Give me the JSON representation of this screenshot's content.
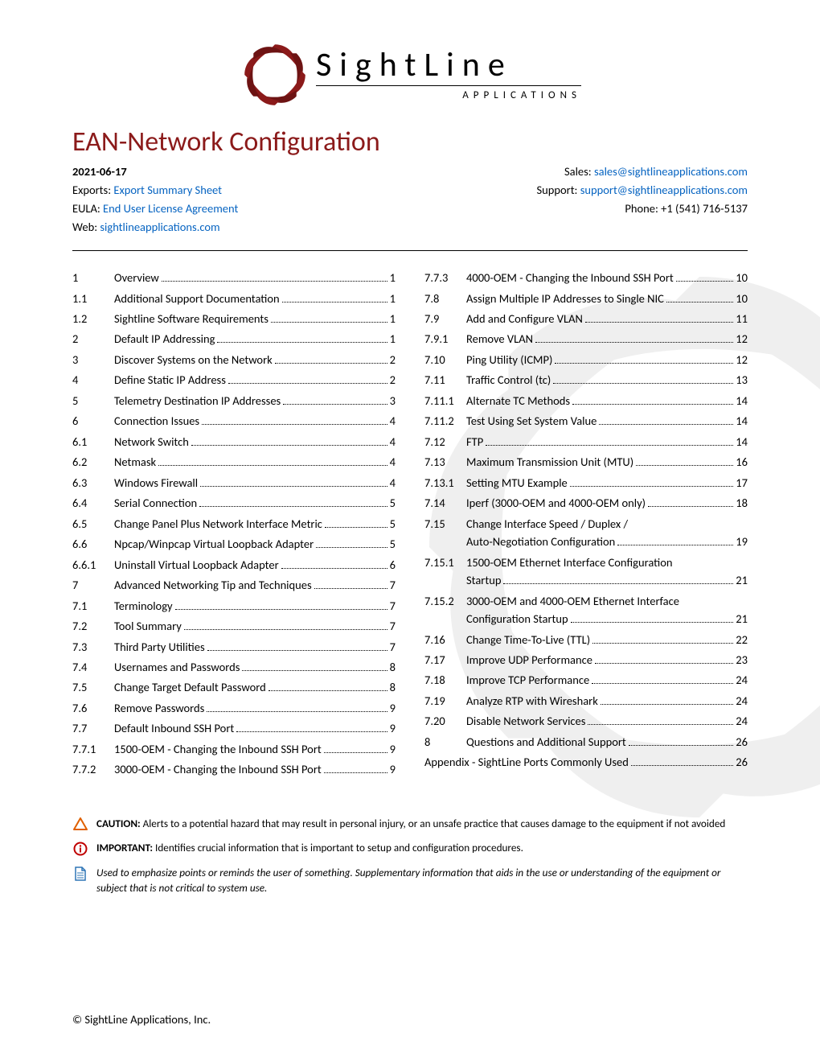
{
  "logo": {
    "main": "SightLine",
    "sub": "APPLICATIONS"
  },
  "title": "EAN-Network Configuration",
  "title_color": "#8b1a1a",
  "link_color": "#0563c1",
  "date": "2021-06-17",
  "header_left": [
    {
      "label": "Exports: ",
      "link": "Export Summary Sheet"
    },
    {
      "label": "EULA: ",
      "link": "End User License Agreement"
    },
    {
      "label": "Web: ",
      "link": "sightlineapplications.com"
    }
  ],
  "header_right": [
    {
      "label": "Sales:  ",
      "link": "sales@sightlineapplications.com"
    },
    {
      "label": "Support: ",
      "link": "support@sightlineapplications.com"
    },
    {
      "label": "Phone: +1 (541) 716-5137",
      "link": null
    }
  ],
  "toc_left": [
    {
      "n": "1",
      "t": "Overview",
      "p": "1"
    },
    {
      "n": "1.1",
      "t": "Additional Support Documentation",
      "p": "1"
    },
    {
      "n": "1.2",
      "t": "Sightline Software Requirements",
      "p": "1"
    },
    {
      "n": "2",
      "t": "Default IP Addressing",
      "p": "1"
    },
    {
      "n": "3",
      "t": "Discover Systems on the Network",
      "p": "2"
    },
    {
      "n": "4",
      "t": "Define Static IP Address",
      "p": "2"
    },
    {
      "n": "5",
      "t": "Telemetry Destination IP Addresses",
      "p": "3"
    },
    {
      "n": "6",
      "t": "Connection Issues",
      "p": "4"
    },
    {
      "n": "6.1",
      "t": "Network Switch",
      "p": "4"
    },
    {
      "n": "6.2",
      "t": "Netmask",
      "p": "4"
    },
    {
      "n": "6.3",
      "t": "Windows Firewall",
      "p": "4"
    },
    {
      "n": "6.4",
      "t": "Serial Connection",
      "p": "5"
    },
    {
      "n": "6.5",
      "t": "Change Panel Plus Network Interface Metric",
      "p": "5"
    },
    {
      "n": "6.6",
      "t": "Npcap/Winpcap Virtual Loopback Adapter",
      "p": "5"
    },
    {
      "n": "6.6.1",
      "t": "Uninstall Virtual Loopback Adapter",
      "p": "6"
    },
    {
      "n": "7",
      "t": "Advanced Networking Tip and Techniques",
      "p": "7"
    },
    {
      "n": "7.1",
      "t": "Terminology",
      "p": "7"
    },
    {
      "n": "7.2",
      "t": "Tool Summary",
      "p": "7"
    },
    {
      "n": "7.3",
      "t": "Third Party Utilities",
      "p": "7"
    },
    {
      "n": "7.4",
      "t": "Usernames and Passwords",
      "p": "8"
    },
    {
      "n": "7.5",
      "t": "Change Target Default Password",
      "p": "8"
    },
    {
      "n": "7.6",
      "t": "Remove Passwords",
      "p": "9"
    },
    {
      "n": "7.7",
      "t": "Default Inbound SSH Port",
      "p": "9"
    },
    {
      "n": "7.7.1",
      "t": "1500-OEM - Changing the Inbound SSH Port",
      "p": "9"
    },
    {
      "n": "7.7.2",
      "t": "3000-OEM - Changing the Inbound SSH Port",
      "p": "9"
    }
  ],
  "toc_right": [
    {
      "n": "7.7.3",
      "t": "4000-OEM - Changing the Inbound SSH Port",
      "p": "10"
    },
    {
      "n": "7.8",
      "t": "Assign Multiple IP Addresses to Single NIC",
      "p": "10"
    },
    {
      "n": "7.9",
      "t": "Add and Configure VLAN",
      "p": "11"
    },
    {
      "n": "7.9.1",
      "t": "Remove VLAN",
      "p": "12"
    },
    {
      "n": "7.10",
      "t": "Ping Utility (ICMP)",
      "p": "12"
    },
    {
      "n": "7.11",
      "t": "Traffic Control (tc)",
      "p": "13"
    },
    {
      "n": "7.11.1",
      "t": "Alternate TC Methods",
      "p": "14"
    },
    {
      "n": "7.11.2",
      "t": "Test Using Set System Value",
      "p": "14"
    },
    {
      "n": "7.12",
      "t": "FTP",
      "p": "14"
    },
    {
      "n": "7.13",
      "t": "Maximum Transmission Unit (MTU)",
      "p": "16"
    },
    {
      "n": "7.13.1",
      "t": "Setting MTU Example",
      "p": "17"
    },
    {
      "n": "7.14",
      "t": "Iperf (3000-OEM and 4000-OEM only)",
      "p": "18"
    },
    {
      "n": "7.15",
      "t": "Change Interface Speed / Duplex / Auto-Negotiation Configuration",
      "p": "19",
      "wrap": true
    },
    {
      "n": "7.15.1",
      "t": "1500-OEM Ethernet Interface Configuration Startup",
      "p": "21",
      "wrap": true
    },
    {
      "n": "7.15.2",
      "t": "3000-OEM and 4000-OEM Ethernet Interface Configuration Startup",
      "p": "21",
      "wrap": true
    },
    {
      "n": "7.16",
      "t": "Change Time-To-Live (TTL)",
      "p": "22"
    },
    {
      "n": "7.17",
      "t": "Improve UDP Performance",
      "p": "23"
    },
    {
      "n": "7.18",
      "t": "Improve TCP Performance",
      "p": "24"
    },
    {
      "n": "7.19",
      "t": "Analyze RTP with Wireshark",
      "p": "24"
    },
    {
      "n": "7.20",
      "t": "Disable Network Services",
      "p": "24"
    },
    {
      "n": "8",
      "t": "Questions and Additional Support",
      "p": "26"
    },
    {
      "n": "",
      "t": "Appendix - SightLine Ports Commonly Used",
      "p": "26",
      "nonum": true
    }
  ],
  "notes": {
    "caution_label": "CAUTION:",
    "caution_text": " Alerts to a potential hazard that may result in personal injury, or an unsafe practice that causes damage to the equipment if not avoided",
    "important_label": "IMPORTANT:",
    "important_text": " Identifies crucial information that is important to setup and configuration procedures.",
    "note_text": "Used to emphasize points or reminds the user of something. Supplementary information that aids in the use or understanding of the equipment or subject that is not critical to system use."
  },
  "icon_colors": {
    "caution": "#e06000",
    "important": "#c00000",
    "note": "#2e75b6"
  },
  "footer": "© SightLine Applications, Inc."
}
